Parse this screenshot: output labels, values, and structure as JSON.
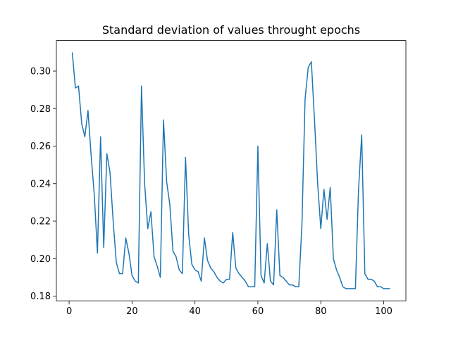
{
  "chart_data": {
    "type": "line",
    "title": "Standard deviation of values throught epochs",
    "x": [
      1,
      2,
      3,
      4,
      5,
      6,
      7,
      8,
      9,
      10,
      11,
      12,
      13,
      14,
      15,
      16,
      17,
      18,
      19,
      20,
      21,
      22,
      23,
      24,
      25,
      26,
      27,
      28,
      29,
      30,
      31,
      32,
      33,
      34,
      35,
      36,
      37,
      38,
      39,
      40,
      41,
      42,
      43,
      44,
      45,
      46,
      47,
      48,
      49,
      50,
      51,
      52,
      53,
      54,
      55,
      56,
      57,
      58,
      59,
      60,
      61,
      62,
      63,
      64,
      65,
      66,
      67,
      68,
      69,
      70,
      71,
      72,
      73,
      74,
      75,
      76,
      77,
      78,
      79,
      80,
      81,
      82,
      83,
      84,
      85,
      86,
      87,
      88,
      89,
      90,
      91,
      92,
      93,
      94,
      95,
      96,
      97,
      98,
      99,
      100,
      101,
      102
    ],
    "series": [
      {
        "color": "#1f77b4",
        "values": [
          0.31,
          0.291,
          0.292,
          0.272,
          0.265,
          0.279,
          0.255,
          0.234,
          0.203,
          0.265,
          0.206,
          0.256,
          0.246,
          0.22,
          0.198,
          0.192,
          0.192,
          0.211,
          0.203,
          0.191,
          0.188,
          0.187,
          0.292,
          0.24,
          0.216,
          0.225,
          0.201,
          0.196,
          0.19,
          0.274,
          0.241,
          0.229,
          0.204,
          0.201,
          0.194,
          0.192,
          0.254,
          0.213,
          0.197,
          0.194,
          0.193,
          0.188,
          0.211,
          0.199,
          0.195,
          0.193,
          0.19,
          0.188,
          0.187,
          0.189,
          0.189,
          0.214,
          0.195,
          0.192,
          0.19,
          0.188,
          0.185,
          0.185,
          0.185,
          0.26,
          0.191,
          0.187,
          0.208,
          0.188,
          0.186,
          0.226,
          0.191,
          0.19,
          0.188,
          0.186,
          0.186,
          0.185,
          0.185,
          0.218,
          0.285,
          0.302,
          0.305,
          0.274,
          0.24,
          0.216,
          0.237,
          0.221,
          0.238,
          0.2,
          0.194,
          0.19,
          0.185,
          0.184,
          0.184,
          0.184,
          0.184,
          0.237,
          0.266,
          0.192,
          0.189,
          0.189,
          0.188,
          0.185,
          0.185,
          0.184,
          0.184,
          0.184
        ]
      }
    ],
    "xlim": [
      -4.05,
      107.05
    ],
    "ylim": [
      0.1775,
      0.3163
    ],
    "xticks": [
      0,
      20,
      40,
      60,
      80,
      100
    ],
    "yticks": [
      0.18,
      {
        "value": 0.2,
        "label": "0.20"
      },
      0.22,
      0.24,
      0.26,
      0.28,
      {
        "value": 0.3,
        "label": "0.30"
      }
    ]
  }
}
